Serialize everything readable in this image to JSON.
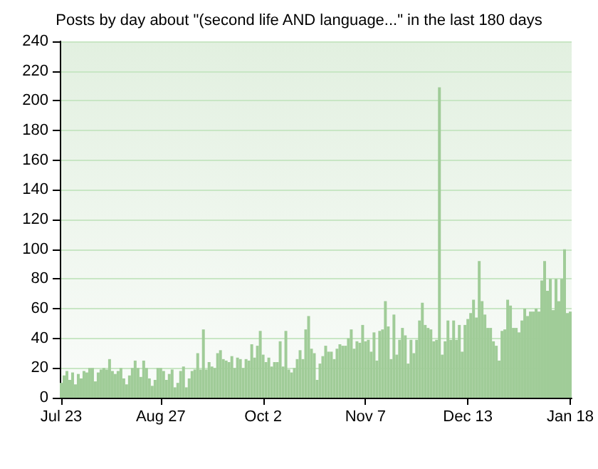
{
  "chart_data": {
    "type": "bar",
    "title": "Posts by day about \"(second life AND language...\" in the last 180 days",
    "categories": [
      "Jul 23",
      null,
      null,
      null,
      null,
      null,
      null,
      null,
      null,
      null,
      null,
      null,
      null,
      null,
      null,
      null,
      null,
      null,
      null,
      null,
      null,
      null,
      null,
      null,
      null,
      null,
      null,
      null,
      null,
      null,
      null,
      null,
      null,
      null,
      null,
      "Aug 27",
      null,
      null,
      null,
      null,
      null,
      null,
      null,
      null,
      null,
      null,
      null,
      null,
      null,
      null,
      null,
      null,
      null,
      null,
      null,
      null,
      null,
      null,
      null,
      null,
      null,
      null,
      null,
      null,
      null,
      null,
      null,
      null,
      null,
      null,
      null,
      "Oct 2",
      null,
      null,
      null,
      null,
      null,
      null,
      null,
      null,
      null,
      null,
      null,
      null,
      null,
      null,
      null,
      null,
      null,
      null,
      null,
      null,
      null,
      null,
      null,
      null,
      null,
      null,
      null,
      null,
      null,
      null,
      null,
      null,
      null,
      null,
      null,
      "Nov 7",
      null,
      null,
      null,
      null,
      null,
      null,
      null,
      null,
      null,
      null,
      null,
      null,
      null,
      null,
      null,
      null,
      null,
      null,
      null,
      null,
      null,
      null,
      null,
      null,
      null,
      null,
      null,
      null,
      null,
      null,
      null,
      null,
      null,
      null,
      null,
      "Dec 13",
      null,
      null,
      null,
      null,
      null,
      null,
      null,
      null,
      null,
      null,
      null,
      null,
      null,
      null,
      null,
      null,
      null,
      null,
      null,
      null,
      null,
      null,
      null,
      null,
      null,
      null,
      null,
      null,
      null,
      null,
      null,
      null,
      null,
      null,
      null,
      "Jan 18"
    ],
    "values": [
      10,
      15,
      18,
      12,
      17,
      9,
      16,
      13,
      18,
      17,
      20,
      20,
      11,
      17,
      19,
      20,
      19,
      26,
      18,
      16,
      18,
      20,
      13,
      9,
      15,
      20,
      25,
      20,
      14,
      25,
      20,
      13,
      8,
      12,
      20,
      20,
      18,
      12,
      16,
      19,
      7,
      10,
      18,
      21,
      7,
      13,
      18,
      19,
      30,
      19,
      46,
      19,
      24,
      21,
      20,
      30,
      32,
      26,
      25,
      24,
      28,
      20,
      27,
      26,
      20,
      26,
      25,
      36,
      27,
      35,
      45,
      29,
      24,
      27,
      21,
      24,
      24,
      38,
      21,
      45,
      19,
      17,
      20,
      26,
      32,
      26,
      46,
      55,
      33,
      30,
      12,
      23,
      28,
      35,
      31,
      31,
      26,
      33,
      36,
      35,
      35,
      40,
      46,
      33,
      38,
      37,
      49,
      38,
      39,
      31,
      44,
      25,
      45,
      46,
      65,
      48,
      26,
      56,
      29,
      39,
      47,
      42,
      23,
      39,
      30,
      39,
      52,
      64,
      49,
      47,
      46,
      38,
      39,
      209,
      29,
      38,
      52,
      39,
      52,
      39,
      49,
      31,
      49,
      53,
      57,
      66,
      54,
      92,
      65,
      56,
      47,
      47,
      38,
      35,
      25,
      45,
      46,
      66,
      62,
      47,
      47,
      44,
      52,
      60,
      55,
      58,
      58,
      60,
      58,
      79,
      92,
      72,
      80,
      59,
      80,
      65,
      80,
      100,
      57,
      58
    ],
    "color": "#a0cc98",
    "ylim": [
      0,
      240
    ],
    "yticks": [
      0,
      20,
      40,
      60,
      80,
      100,
      120,
      140,
      160,
      180,
      200,
      220,
      240
    ],
    "grid": "y"
  }
}
